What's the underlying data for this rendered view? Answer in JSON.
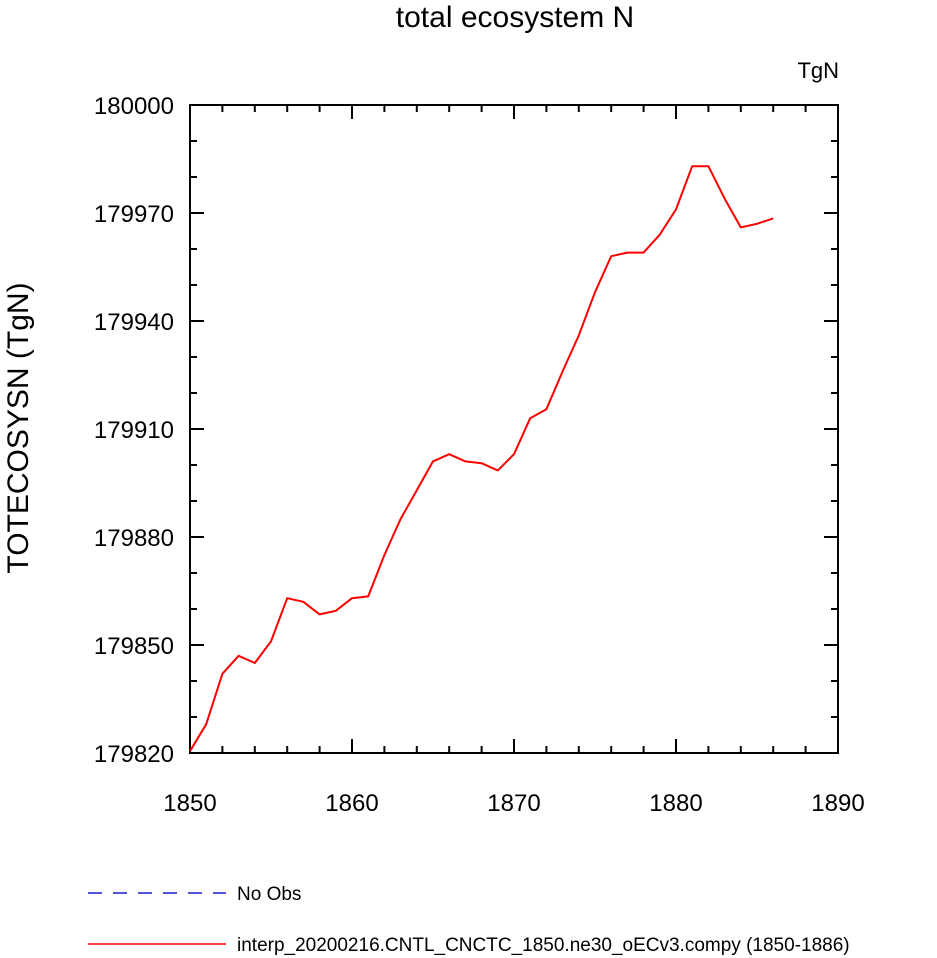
{
  "chart_data": {
    "type": "line",
    "title": "total ecosystem N",
    "units_label": "TgN",
    "xlabel": "",
    "ylabel": "TOTECOSYSN  (TgN)",
    "xlim": [
      1850,
      1890
    ],
    "ylim": [
      179820,
      180000
    ],
    "xticks": [
      1850,
      1860,
      1870,
      1880,
      1890
    ],
    "yticks": [
      179820,
      179850,
      179880,
      179910,
      179940,
      179970,
      180000
    ],
    "grid": false,
    "legend_position": "bottom",
    "series": [
      {
        "name": "No Obs",
        "color": "#1a1acc",
        "style": "dashed",
        "x": [],
        "y": []
      },
      {
        "name": "interp_20200216.CNTL_CNCTC_1850.ne30_oECv3.compy (1850-1886)",
        "color": "#ff0000",
        "style": "solid",
        "x": [
          1850,
          1851,
          1852,
          1853,
          1854,
          1855,
          1856,
          1857,
          1858,
          1859,
          1860,
          1861,
          1862,
          1863,
          1864,
          1865,
          1866,
          1867,
          1868,
          1869,
          1870,
          1871,
          1872,
          1873,
          1874,
          1875,
          1876,
          1877,
          1878,
          1879,
          1880,
          1881,
          1882,
          1883,
          1884,
          1885,
          1886
        ],
        "y": [
          179820.5,
          179828,
          179842,
          179847,
          179845,
          179851,
          179863,
          179862,
          179858.5,
          179859.5,
          179863,
          179863.5,
          179875,
          179885,
          179893,
          179901,
          179903,
          179901,
          179900.5,
          179898.5,
          179903,
          179913,
          179915.5,
          179926,
          179936,
          179948,
          179958,
          179959,
          179959,
          179964,
          179971,
          179983,
          179983,
          179974,
          179966,
          179967,
          179968.5
        ]
      }
    ]
  }
}
